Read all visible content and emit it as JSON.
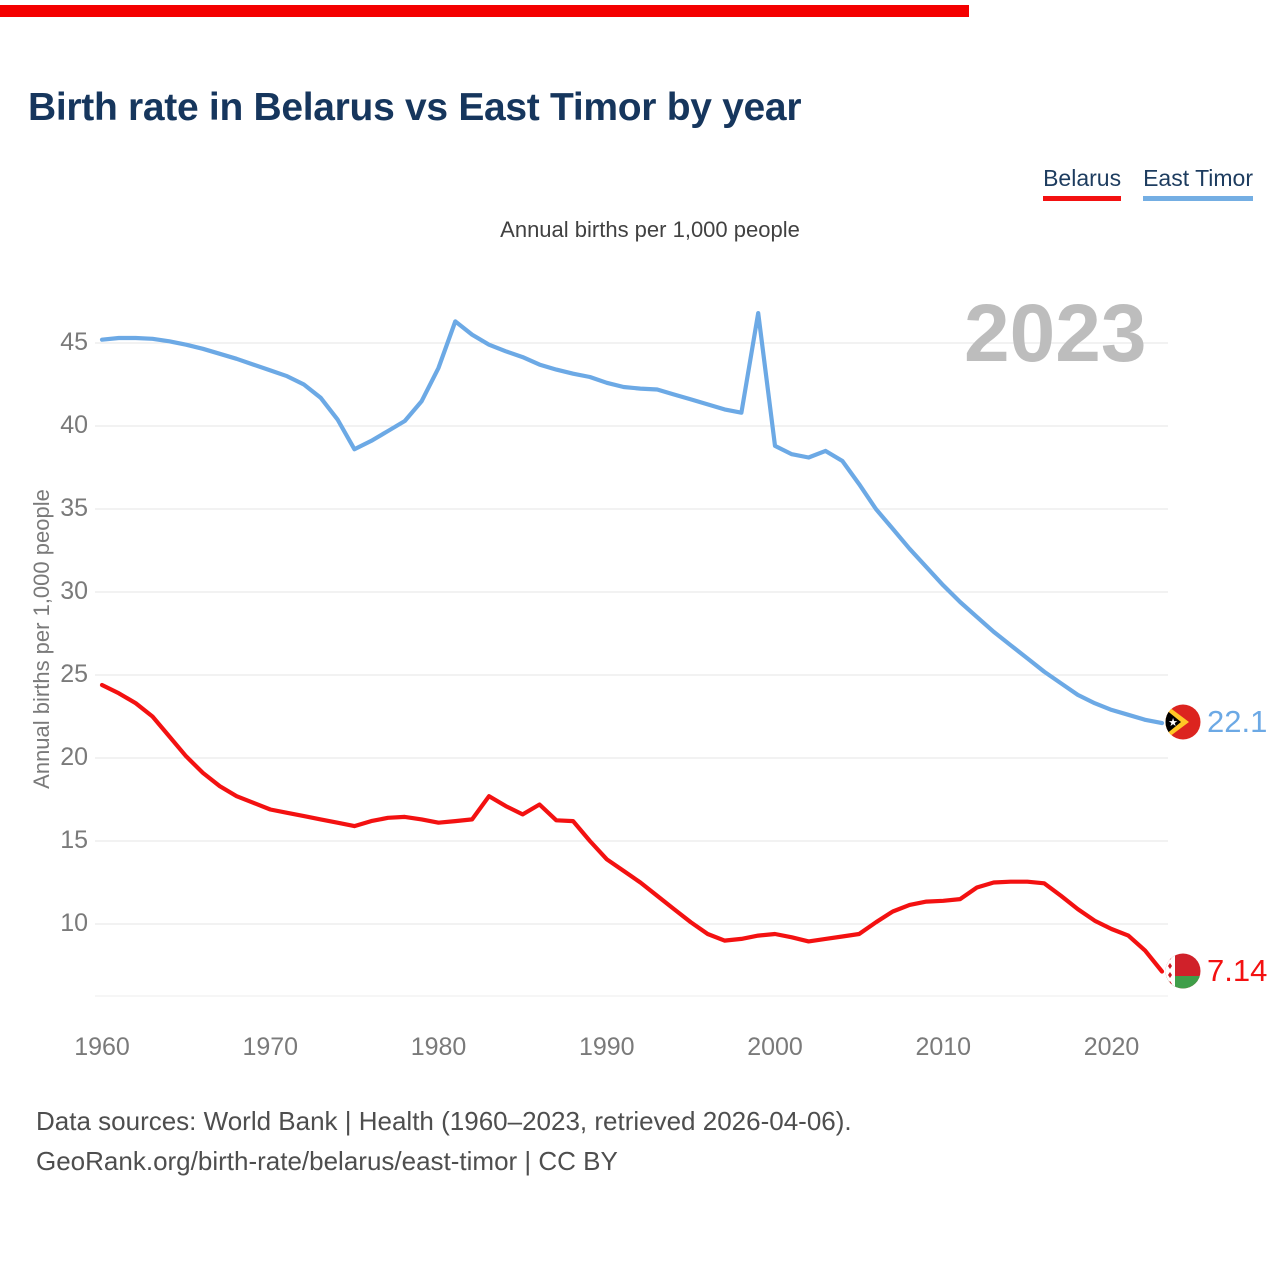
{
  "title": "Birth rate in Belarus vs East Timor by year",
  "subtitle": "Annual births per 1,000 people",
  "watermark": "2023",
  "top_bar_color": "#f40000",
  "legend": {
    "items": [
      {
        "label": "Belarus",
        "color": "#f31111"
      },
      {
        "label": "East Timor",
        "color": "#74aee3"
      }
    ]
  },
  "axis": {
    "y_title": "Annual births per 1,000 people"
  },
  "end_labels": {
    "east_timor": "22.1",
    "belarus": "7.14"
  },
  "footer": {
    "line1": "Data sources: World Bank | Health (1960–2023, retrieved 2026-04-06).",
    "line2": "GeoRank.org/birth-rate/belarus/east-timor | CC BY"
  },
  "chart_data": {
    "type": "line",
    "title": "Birth rate in Belarus vs East Timor by year",
    "ylabel": "Annual births per 1,000 people",
    "grid": "horizontal",
    "legend_position": "top-right",
    "ylim": [
      5.6,
      47.5
    ],
    "xlim": [
      1960,
      2023
    ],
    "yticks": [
      10,
      15,
      20,
      25,
      30,
      35,
      40,
      45
    ],
    "xticks": [
      1960,
      1970,
      1980,
      1990,
      2000,
      2010,
      2020
    ],
    "end_label_year": 2023,
    "years": [
      1960,
      1961,
      1962,
      1963,
      1964,
      1965,
      1966,
      1967,
      1968,
      1969,
      1970,
      1971,
      1972,
      1973,
      1974,
      1975,
      1976,
      1977,
      1978,
      1979,
      1980,
      1981,
      1982,
      1983,
      1984,
      1985,
      1986,
      1987,
      1988,
      1989,
      1990,
      1991,
      1992,
      1993,
      1994,
      1995,
      1996,
      1997,
      1998,
      1999,
      2000,
      2001,
      2002,
      2003,
      2004,
      2005,
      2006,
      2007,
      2008,
      2009,
      2010,
      2011,
      2012,
      2013,
      2014,
      2015,
      2016,
      2017,
      2018,
      2019,
      2020,
      2021,
      2022,
      2023
    ],
    "series": [
      {
        "name": "Belarus",
        "color": "#f31111",
        "final_value": 7.14,
        "values": [
          24.4,
          23.9,
          23.3,
          22.5,
          21.3,
          20.1,
          19.1,
          18.3,
          17.7,
          17.3,
          16.9,
          16.7,
          16.5,
          16.3,
          16.1,
          15.9,
          16.2,
          16.4,
          16.45,
          16.3,
          16.1,
          16.2,
          16.3,
          17.7,
          17.1,
          16.6,
          17.2,
          16.25,
          16.2,
          15.0,
          13.9,
          13.2,
          12.5,
          11.7,
          10.9,
          10.1,
          9.4,
          9.0,
          9.1,
          9.3,
          9.4,
          9.2,
          8.95,
          9.1,
          9.25,
          9.4,
          10.1,
          10.75,
          11.15,
          11.35,
          11.4,
          11.5,
          12.2,
          12.5,
          12.55,
          12.55,
          12.45,
          11.7,
          10.9,
          10.2,
          9.7,
          9.3,
          8.4,
          7.14
        ]
      },
      {
        "name": "East Timor",
        "color": "#6ca9e5",
        "final_value": 22.1,
        "values": [
          45.2,
          45.3,
          45.3,
          45.25,
          45.1,
          44.9,
          44.65,
          44.35,
          44.05,
          43.7,
          43.35,
          43.0,
          42.5,
          41.7,
          40.4,
          38.6,
          39.1,
          39.7,
          40.3,
          41.5,
          43.5,
          46.3,
          45.5,
          44.9,
          44.5,
          44.15,
          43.7,
          43.4,
          43.15,
          42.95,
          42.6,
          42.35,
          42.25,
          42.2,
          41.9,
          41.6,
          41.3,
          41.0,
          40.8,
          46.8,
          38.8,
          38.3,
          38.1,
          38.5,
          37.9,
          36.5,
          35.0,
          33.8,
          32.6,
          31.5,
          30.4,
          29.4,
          28.5,
          27.6,
          26.8,
          26.0,
          25.2,
          24.5,
          23.8,
          23.3,
          22.9,
          22.6,
          22.3,
          22.1
        ]
      }
    ]
  }
}
